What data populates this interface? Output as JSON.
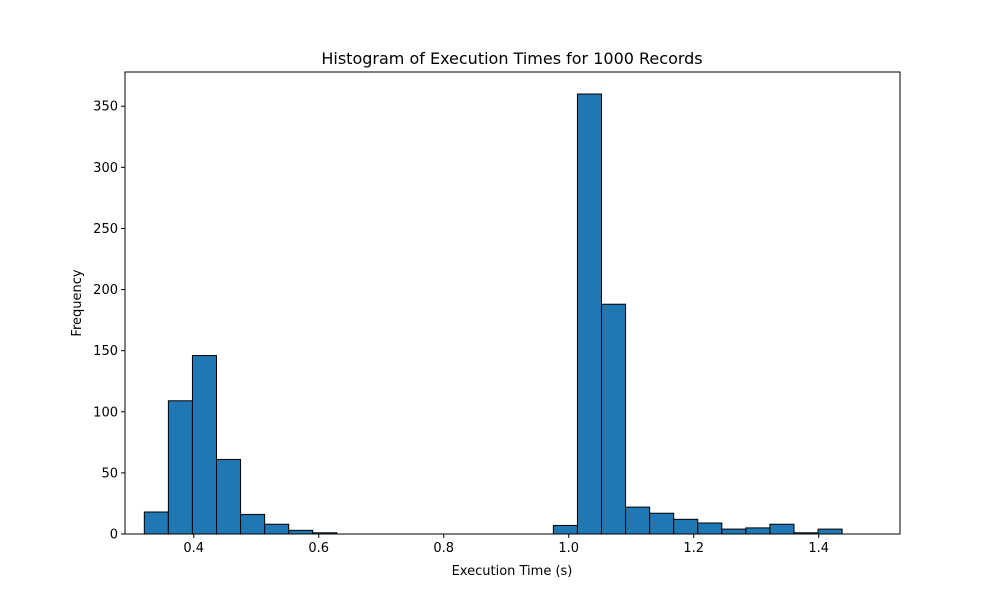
{
  "chart_data": {
    "type": "bar",
    "title": "Histogram of Execution Times for 1000 Records",
    "xlabel": "Execution Time (s)",
    "ylabel": "Frequency",
    "xlim": [
      0.29,
      1.53
    ],
    "ylim": [
      0,
      378
    ],
    "grid": false,
    "legend": null,
    "bar_color": "#1f77b4",
    "edge_color": "#000000",
    "bin_start": 0.3209,
    "bin_width": 0.0385,
    "values": [
      18,
      109,
      146,
      61,
      16,
      8,
      3,
      1,
      0,
      0,
      0,
      0,
      0,
      0,
      0,
      0,
      0,
      7,
      360,
      188,
      22,
      17,
      12,
      9,
      4,
      5,
      8,
      1,
      4
    ],
    "xticks": [
      0.4,
      0.6,
      0.8,
      1.0,
      1.2,
      1.4
    ],
    "xtick_labels": [
      "0.4",
      "0.6",
      "0.8",
      "1.0",
      "1.2",
      "1.4"
    ],
    "yticks": [
      0,
      50,
      100,
      150,
      200,
      250,
      300,
      350
    ],
    "ytick_labels": [
      "0",
      "50",
      "100",
      "150",
      "200",
      "250",
      "300",
      "350"
    ]
  }
}
